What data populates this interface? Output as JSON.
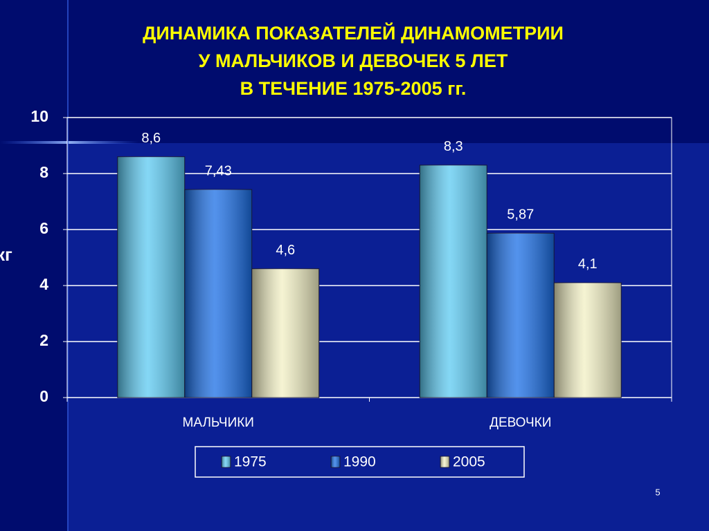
{
  "chart_data": {
    "type": "bar",
    "title": [
      "ДИНАМИКА ПОКАЗАТЕЛЕЙ ДИНАМОМЕТРИИ",
      "У МАЛЬЧИКОВ И ДЕВОЧЕК 5 ЛЕТ",
      "В ТЕЧЕНИЕ 1975-2005 гг."
    ],
    "y_label": "кг",
    "categories": [
      "МАЛЬЧИКИ",
      "ДЕВОЧКИ"
    ],
    "series": [
      {
        "name": "1975",
        "color": "#5ccaf2",
        "values": [
          8.6,
          8.3
        ],
        "value_labels": [
          "8,6",
          "8,3"
        ]
      },
      {
        "name": "1990",
        "color": "#1a6ee6",
        "values": [
          7.43,
          5.87
        ],
        "value_labels": [
          "7,43",
          "5,87"
        ]
      },
      {
        "name": "2005",
        "color": "#f2f0c4",
        "values": [
          4.6,
          4.1
        ],
        "value_labels": [
          "4,6",
          "4,1"
        ]
      }
    ],
    "ylim": [
      0,
      10
    ],
    "yticks": [
      0,
      2,
      4,
      6,
      8,
      10
    ],
    "grid": true,
    "legend": "bottom"
  },
  "page_number": "5"
}
